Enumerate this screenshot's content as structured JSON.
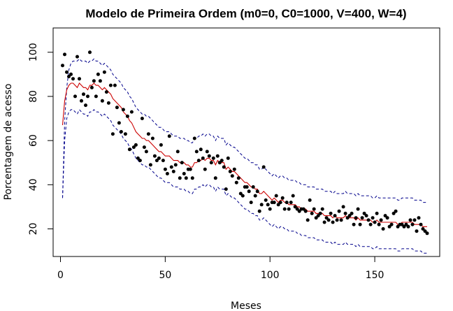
{
  "chart_data": {
    "type": "scatter",
    "title": "Modelo de Primeira Ordem (m0=0, C0=1000, V=400, W=4)",
    "xlabel": "Meses",
    "ylabel": "Porcentagem de acesso",
    "xlim": [
      -3.5,
      181
    ],
    "ylim": [
      7.5,
      111
    ],
    "xticks": [
      0,
      50,
      100,
      150
    ],
    "yticks": [
      20,
      40,
      60,
      80,
      100
    ],
    "grid": false,
    "legend": "none",
    "colors": {
      "points": "#000000",
      "fit": "#cc0000",
      "bands": "#00008b"
    },
    "x": [
      1,
      2,
      3,
      4,
      5,
      6,
      7,
      8,
      9,
      10,
      11,
      12,
      13,
      14,
      15,
      16,
      17,
      18,
      19,
      20,
      21,
      22,
      23,
      24,
      25,
      26,
      27,
      28,
      29,
      30,
      31,
      32,
      33,
      34,
      35,
      36,
      37,
      38,
      39,
      40,
      41,
      42,
      43,
      44,
      45,
      46,
      47,
      48,
      49,
      50,
      51,
      52,
      53,
      54,
      55,
      56,
      57,
      58,
      59,
      60,
      61,
      62,
      63,
      64,
      65,
      66,
      67,
      68,
      69,
      70,
      71,
      72,
      73,
      74,
      75,
      76,
      77,
      78,
      79,
      80,
      81,
      82,
      83,
      84,
      85,
      86,
      87,
      88,
      89,
      90,
      91,
      92,
      93,
      94,
      95,
      96,
      97,
      98,
      99,
      100,
      101,
      102,
      103,
      104,
      105,
      106,
      107,
      108,
      109,
      110,
      111,
      112,
      113,
      114,
      115,
      116,
      117,
      118,
      119,
      120,
      121,
      122,
      123,
      124,
      125,
      126,
      127,
      128,
      129,
      130,
      131,
      132,
      133,
      134,
      135,
      136,
      137,
      138,
      139,
      140,
      141,
      142,
      143,
      144,
      145,
      146,
      147,
      148,
      149,
      150,
      151,
      152,
      153,
      154,
      155,
      156,
      157,
      158,
      159,
      160,
      161,
      162,
      163,
      164,
      165,
      166,
      167,
      168,
      169,
      170,
      171,
      172,
      173,
      174,
      175
    ],
    "points": [
      94,
      99,
      91,
      89,
      90,
      88,
      80,
      98,
      88,
      78,
      81,
      76,
      80,
      100,
      84,
      87,
      80,
      90,
      87,
      78,
      91,
      82,
      77,
      85,
      63,
      85,
      75,
      68,
      64,
      74,
      63,
      71,
      56,
      73,
      57,
      58,
      52,
      51,
      70,
      57,
      55,
      63,
      49,
      61,
      53,
      51,
      52,
      58,
      51,
      47,
      45,
      62,
      48,
      46,
      49,
      55,
      43,
      50,
      45,
      43,
      47,
      47,
      43,
      61,
      55,
      51,
      56,
      52,
      47,
      55,
      53,
      50,
      52,
      43,
      53,
      50,
      51,
      48,
      38,
      52,
      46,
      44,
      47,
      41,
      43,
      36,
      35,
      39,
      39,
      37,
      32,
      39,
      35,
      37,
      28,
      31,
      48,
      33,
      31,
      29,
      32,
      32,
      35,
      31,
      32,
      34,
      29,
      32,
      29,
      32,
      35,
      30,
      29,
      28,
      29,
      29,
      28,
      24,
      33,
      27,
      29,
      25,
      26,
      27,
      29,
      23,
      25,
      24,
      27,
      23,
      26,
      24,
      28,
      24,
      30,
      27,
      25,
      26,
      27,
      22,
      25,
      29,
      22,
      25,
      27,
      26,
      24,
      22,
      25,
      23,
      27,
      22,
      24,
      20,
      26,
      25,
      21,
      22,
      27,
      28,
      21,
      22,
      22,
      21,
      22,
      21,
      24,
      22,
      24,
      19,
      25,
      22,
      20,
      19,
      18
    ],
    "fit": [
      67,
      78,
      83,
      85,
      86,
      86,
      85,
      84,
      86,
      85,
      84,
      84,
      83,
      85,
      85,
      86,
      85,
      85,
      84,
      83,
      84,
      83,
      82,
      81,
      79,
      78,
      77,
      76,
      75,
      73,
      72,
      71,
      69,
      68,
      66,
      64,
      63,
      62,
      61,
      61,
      60,
      60,
      59,
      58,
      57,
      56,
      55,
      55,
      54,
      53,
      53,
      53,
      52,
      51,
      51,
      51,
      50,
      50,
      50,
      49,
      49,
      48,
      48,
      50,
      50,
      51,
      51,
      52,
      51,
      52,
      52,
      51,
      51,
      49,
      51,
      50,
      50,
      50,
      47,
      48,
      47,
      46,
      46,
      45,
      44,
      43,
      42,
      41,
      41,
      40,
      39,
      39,
      38,
      38,
      36,
      36,
      37,
      36,
      35,
      34,
      33,
      34,
      33,
      32,
      33,
      33,
      32,
      32,
      31,
      31,
      31,
      31,
      30,
      30,
      29,
      29,
      29,
      28,
      28,
      28,
      28,
      27,
      27,
      27,
      27,
      26,
      26,
      26,
      26,
      25,
      26,
      25,
      25,
      25,
      25,
      26,
      25,
      25,
      25,
      25,
      24,
      25,
      24,
      24,
      24,
      24,
      24,
      24,
      23,
      23,
      24,
      23,
      23,
      23,
      23,
      23,
      23,
      23,
      23,
      23,
      22,
      22,
      23,
      23,
      23,
      23,
      23,
      23,
      22,
      22,
      22,
      22,
      21,
      21,
      21
    ],
    "upper": [
      34,
      69,
      84,
      92,
      95,
      96,
      96,
      96,
      97,
      96,
      96,
      96,
      95,
      96,
      96,
      97,
      96,
      96,
      95,
      94,
      95,
      94,
      93,
      92,
      90,
      89,
      88,
      87,
      86,
      84,
      83,
      82,
      80,
      79,
      77,
      75,
      74,
      73,
      72,
      72,
      71,
      71,
      70,
      69,
      68,
      67,
      66,
      66,
      65,
      64,
      64,
      64,
      63,
      62,
      62,
      62,
      61,
      61,
      61,
      60,
      60,
      59,
      59,
      61,
      61,
      62,
      62,
      63,
      62,
      63,
      63,
      62,
      62,
      60,
      62,
      61,
      61,
      61,
      58,
      59,
      58,
      57,
      57,
      56,
      55,
      54,
      53,
      52,
      52,
      51,
      50,
      50,
      49,
      49,
      47,
      47,
      48,
      47,
      46,
      45,
      44,
      45,
      44,
      43,
      44,
      44,
      43,
      43,
      42,
      42,
      42,
      42,
      41,
      41,
      40,
      40,
      40,
      39,
      39,
      39,
      39,
      38,
      38,
      38,
      38,
      37,
      37,
      37,
      37,
      36,
      37,
      36,
      36,
      36,
      36,
      37,
      36,
      36,
      36,
      36,
      35,
      36,
      35,
      35,
      35,
      35,
      35,
      35,
      34,
      34,
      35,
      34,
      34,
      34,
      34,
      34,
      34,
      34,
      34,
      34,
      33,
      33,
      34,
      34,
      34,
      34,
      34,
      34,
      33,
      33,
      33,
      33,
      32,
      32,
      32
    ],
    "lower": [
      34,
      60,
      70,
      73,
      74,
      74,
      73,
      72,
      74,
      73,
      72,
      72,
      71,
      73,
      73,
      74,
      73,
      73,
      72,
      71,
      72,
      71,
      70,
      69,
      67,
      66,
      65,
      64,
      63,
      61,
      60,
      59,
      57,
      56,
      54,
      52,
      51,
      50,
      49,
      49,
      48,
      48,
      47,
      46,
      45,
      44,
      43,
      43,
      42,
      41,
      41,
      41,
      40,
      39,
      39,
      39,
      38,
      38,
      38,
      37,
      37,
      36,
      36,
      38,
      38,
      39,
      39,
      40,
      39,
      40,
      40,
      39,
      39,
      37,
      39,
      38,
      38,
      38,
      35,
      36,
      35,
      34,
      34,
      33,
      32,
      31,
      30,
      29,
      29,
      28,
      27,
      27,
      26,
      26,
      24,
      24,
      25,
      24,
      23,
      22,
      21,
      22,
      21,
      20,
      21,
      21,
      20,
      20,
      19,
      19,
      19,
      19,
      18,
      18,
      17,
      17,
      17,
      16,
      16,
      16,
      16,
      15,
      15,
      15,
      15,
      14,
      14,
      14,
      14,
      13,
      14,
      13,
      13,
      13,
      13,
      14,
      13,
      13,
      13,
      13,
      12,
      13,
      12,
      12,
      12,
      12,
      12,
      12,
      11,
      11,
      12,
      11,
      11,
      11,
      11,
      11,
      11,
      11,
      11,
      11,
      10,
      10,
      11,
      11,
      11,
      11,
      11,
      11,
      10,
      10,
      10,
      10,
      9,
      9,
      9
    ]
  }
}
